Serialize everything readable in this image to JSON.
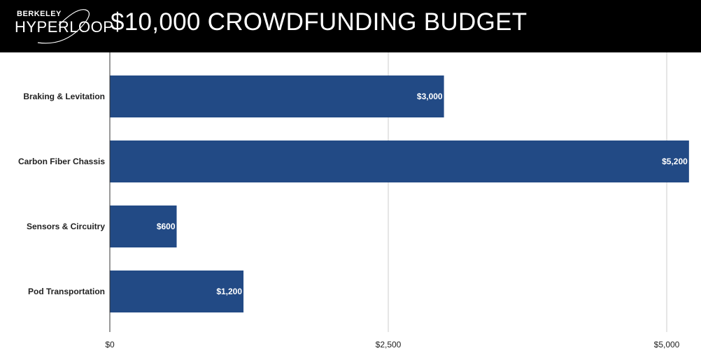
{
  "header": {
    "logo_top": "BERKELEY",
    "logo_bottom": "HYPERLOOP",
    "title": "$10,000 CROWDFUNDING BUDGET"
  },
  "colors": {
    "bar": "#224a85",
    "header_bg": "#000000",
    "grid": "#cccccc",
    "axis": "#333333"
  },
  "chart_data": {
    "type": "bar",
    "orientation": "horizontal",
    "categories": [
      "Braking & Levitation",
      "Carbon Fiber Chassis",
      "Sensors & Circuitry",
      "Pod Transportation"
    ],
    "values": [
      3000,
      5200,
      600,
      1200
    ],
    "data_labels": [
      "$3,000",
      "$5,200",
      "$600",
      "$1,200"
    ],
    "xlim": [
      0,
      5200
    ],
    "xticks": [
      0,
      2500,
      5000
    ],
    "xtick_labels": [
      "$0",
      "$2,500",
      "$5,000"
    ],
    "grid": true,
    "legend": "none"
  }
}
